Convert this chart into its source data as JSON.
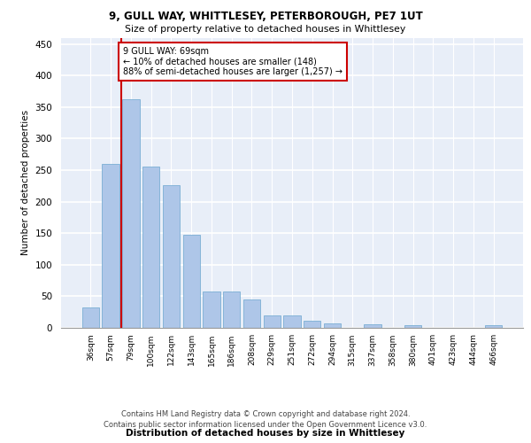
{
  "title1": "9, GULL WAY, WHITTLESEY, PETERBOROUGH, PE7 1UT",
  "title2": "Size of property relative to detached houses in Whittlesey",
  "xlabel": "Distribution of detached houses by size in Whittlesey",
  "ylabel": "Number of detached properties",
  "categories": [
    "36sqm",
    "57sqm",
    "79sqm",
    "100sqm",
    "122sqm",
    "143sqm",
    "165sqm",
    "186sqm",
    "208sqm",
    "229sqm",
    "251sqm",
    "272sqm",
    "294sqm",
    "315sqm",
    "337sqm",
    "358sqm",
    "380sqm",
    "401sqm",
    "423sqm",
    "444sqm",
    "466sqm"
  ],
  "values": [
    33,
    260,
    362,
    255,
    226,
    148,
    57,
    57,
    45,
    19,
    19,
    11,
    7,
    0,
    6,
    0,
    4,
    0,
    0,
    0,
    4
  ],
  "bar_color": "#aec6e8",
  "bar_edge_color": "#7bafd4",
  "vline_x": 1.5,
  "vline_color": "#cc0000",
  "annotation_text": "9 GULL WAY: 69sqm\n← 10% of detached houses are smaller (148)\n88% of semi-detached houses are larger (1,257) →",
  "annotation_box_color": "#cc0000",
  "ylim": [
    0,
    460
  ],
  "yticks": [
    0,
    50,
    100,
    150,
    200,
    250,
    300,
    350,
    400,
    450
  ],
  "bg_color": "#e8eef8",
  "footer1": "Contains HM Land Registry data © Crown copyright and database right 2024.",
  "footer2": "Contains public sector information licensed under the Open Government Licence v3.0."
}
